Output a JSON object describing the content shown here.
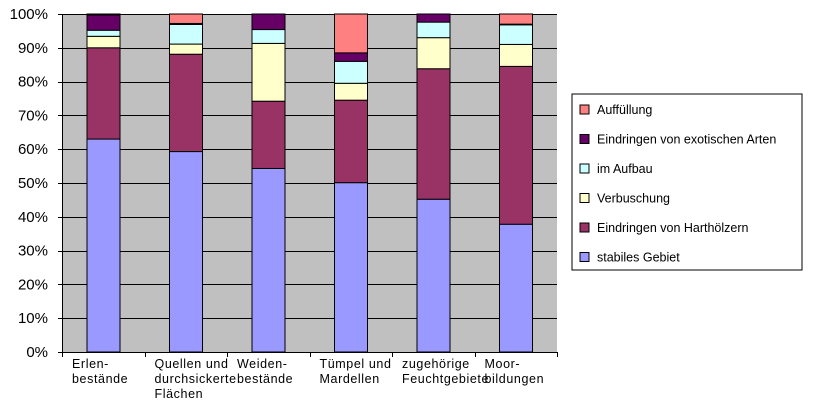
{
  "chart_data": {
    "type": "bar",
    "stacked": "percent",
    "title": "",
    "xlabel": "",
    "ylabel": "",
    "ylim": [
      0,
      100
    ],
    "yticks": [
      "0%",
      "10%",
      "20%",
      "30%",
      "40%",
      "50%",
      "60%",
      "70%",
      "80%",
      "90%",
      "100%"
    ],
    "grid": true,
    "legend_position": "right",
    "plot_background": "#c0c0c0",
    "categories": [
      [
        "Erlen-",
        "bestände"
      ],
      [
        "Quellen und",
        "durchsickerte",
        "Flächen"
      ],
      [
        "Weiden-",
        "bestände"
      ],
      [
        "Tümpel und",
        "Mardellen"
      ],
      [
        "zugehörige",
        "Feuchtgebiete"
      ],
      [
        "Moor-",
        "bildungen"
      ]
    ],
    "series": [
      {
        "name": "stabiles Gebiet",
        "color": "#9999ff",
        "values": [
          63.0,
          59.3,
          54.3,
          50.1,
          45.2,
          37.8
        ]
      },
      {
        "name": "Eindringen von Harthölzern",
        "color": "#993366",
        "values": [
          27.0,
          28.8,
          19.9,
          24.4,
          38.6,
          46.7
        ]
      },
      {
        "name": "Verbuschung",
        "color": "#ffffcc",
        "values": [
          3.4,
          3.0,
          17.1,
          5.0,
          9.2,
          6.5
        ]
      },
      {
        "name": "im Aufbau",
        "color": "#ccffff",
        "values": [
          1.8,
          5.8,
          4.1,
          6.5,
          4.6,
          5.8
        ]
      },
      {
        "name": "Eindringen von exotischen Arten",
        "color": "#660066",
        "values": [
          4.5,
          0.3,
          4.6,
          2.5,
          2.4,
          0.2
        ]
      },
      {
        "name": "Auffüllung",
        "color": "#ff8080",
        "values": [
          0.3,
          2.8,
          0.0,
          11.5,
          0.0,
          3.0
        ]
      }
    ],
    "legend_order": [
      "Auffüllung",
      "Eindringen von exotischen Arten",
      "im Aufbau",
      "Verbuschung",
      "Eindringen von Harthölzern",
      "stabiles Gebiet"
    ]
  }
}
